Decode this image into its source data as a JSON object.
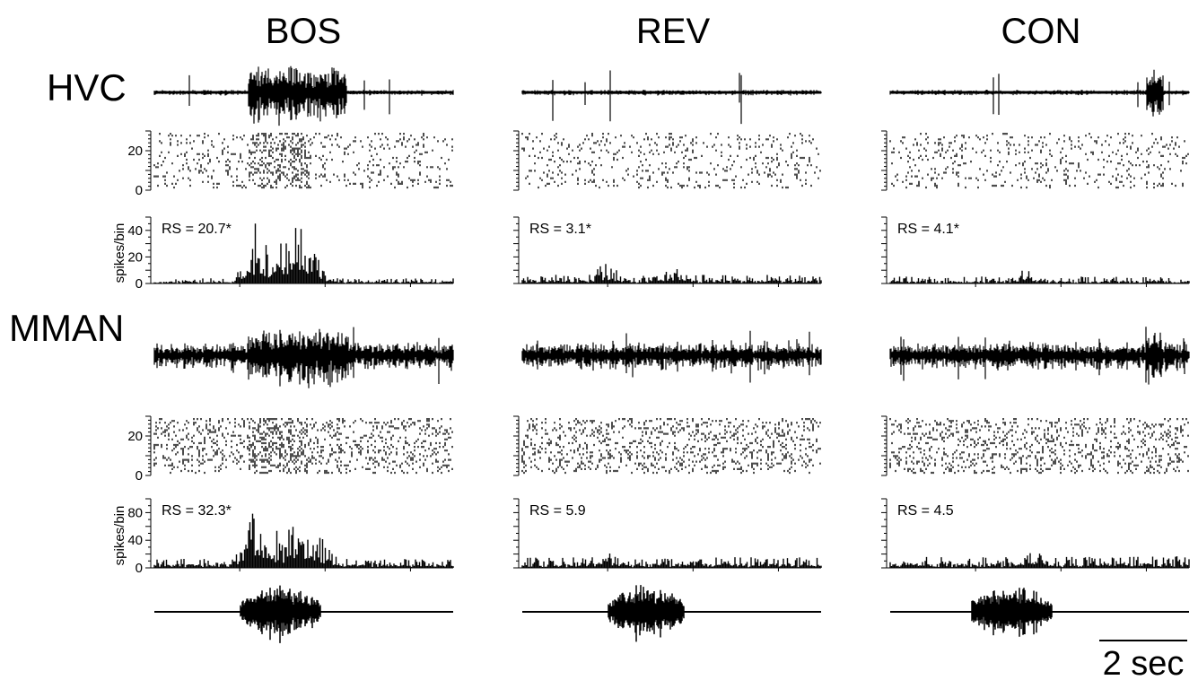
{
  "columns": [
    "BOS",
    "REV",
    "CON"
  ],
  "regions": [
    "HVC",
    "MMAN"
  ],
  "scale_bar_label": "2 sec",
  "chart_data": [
    {
      "type": "line",
      "panel": "HVC multiunit trace",
      "column": "BOS",
      "region": "HVC",
      "burst_windows_sec": [
        [
          2.2,
          4.5
        ]
      ]
    },
    {
      "type": "line",
      "panel": "HVC multiunit trace",
      "column": "REV",
      "region": "HVC",
      "burst_windows_sec": []
    },
    {
      "type": "line",
      "panel": "HVC multiunit trace",
      "column": "CON",
      "region": "HVC",
      "burst_windows_sec": [
        [
          6.0,
          6.4
        ]
      ]
    },
    {
      "type": "scatter",
      "panel": "HVC raster",
      "column": "BOS",
      "region": "HVC",
      "trials": 30,
      "yticks": [
        0,
        20
      ],
      "ylim": [
        0,
        30
      ]
    },
    {
      "type": "scatter",
      "panel": "HVC raster",
      "column": "REV",
      "region": "HVC",
      "trials": 30,
      "yticks": [
        0,
        20
      ],
      "ylim": [
        0,
        30
      ]
    },
    {
      "type": "scatter",
      "panel": "HVC raster",
      "column": "CON",
      "region": "HVC",
      "trials": 30,
      "yticks": [
        0,
        20
      ],
      "ylim": [
        0,
        30
      ]
    },
    {
      "type": "bar",
      "panel": "HVC PSTH",
      "column": "BOS",
      "region": "HVC",
      "annotation": "RS = 20.7*",
      "ylabel": "spikes/bin",
      "yticks": [
        0,
        20,
        40
      ],
      "ylim": [
        0,
        50
      ],
      "baseline": 3,
      "peaks": [
        [
          2.4,
          42
        ],
        [
          3.3,
          45
        ],
        [
          3.0,
          30
        ],
        [
          3.6,
          28
        ]
      ]
    },
    {
      "type": "bar",
      "panel": "HVC PSTH",
      "column": "REV",
      "region": "HVC",
      "annotation": "RS = 3.1*",
      "ylim": [
        0,
        50
      ],
      "baseline": 5,
      "peaks": [
        [
          2.0,
          16
        ],
        [
          3.5,
          13
        ]
      ]
    },
    {
      "type": "bar",
      "panel": "HVC PSTH",
      "column": "CON",
      "region": "HVC",
      "annotation": "RS = 4.1*",
      "ylim": [
        0,
        50
      ],
      "baseline": 4,
      "peaks": [
        [
          3.2,
          10
        ]
      ]
    },
    {
      "type": "line",
      "panel": "MMAN multiunit trace",
      "column": "BOS",
      "region": "MMAN",
      "burst_windows_sec": [
        [
          2.2,
          4.5
        ]
      ]
    },
    {
      "type": "line",
      "panel": "MMAN multiunit trace",
      "column": "REV",
      "region": "MMAN",
      "burst_windows_sec": []
    },
    {
      "type": "line",
      "panel": "MMAN multiunit trace",
      "column": "CON",
      "region": "MMAN",
      "burst_windows_sec": [
        [
          6.0,
          6.4
        ]
      ]
    },
    {
      "type": "scatter",
      "panel": "MMAN raster",
      "column": "BOS",
      "region": "MMAN",
      "trials": 30,
      "yticks": [
        0,
        20
      ],
      "ylim": [
        0,
        30
      ]
    },
    {
      "type": "scatter",
      "panel": "MMAN raster",
      "column": "REV",
      "region": "MMAN",
      "trials": 30,
      "yticks": [
        0,
        20
      ],
      "ylim": [
        0,
        30
      ]
    },
    {
      "type": "scatter",
      "panel": "MMAN raster",
      "column": "CON",
      "region": "MMAN",
      "trials": 30,
      "yticks": [
        0,
        20
      ],
      "ylim": [
        0,
        30
      ]
    },
    {
      "type": "bar",
      "panel": "MMAN PSTH",
      "column": "BOS",
      "region": "MMAN",
      "annotation": "RS = 32.3*",
      "ylabel": "spikes/bin",
      "yticks": [
        0,
        40,
        80
      ],
      "ylim": [
        0,
        100
      ],
      "baseline": 10,
      "peaks": [
        [
          2.3,
          75
        ],
        [
          3.4,
          88
        ],
        [
          2.8,
          55
        ],
        [
          3.9,
          45
        ]
      ]
    },
    {
      "type": "bar",
      "panel": "MMAN PSTH",
      "column": "REV",
      "region": "MMAN",
      "annotation": "RS = 5.9",
      "ylim": [
        0,
        100
      ],
      "baseline": 12,
      "peaks": [
        [
          2.0,
          25
        ]
      ]
    },
    {
      "type": "bar",
      "panel": "MMAN PSTH",
      "column": "CON",
      "region": "MMAN",
      "annotation": "RS = 4.5",
      "ylim": [
        0,
        100
      ],
      "baseline": 13,
      "peaks": [
        [
          3.4,
          22
        ]
      ]
    },
    {
      "type": "line",
      "panel": "song waveform",
      "column": "BOS",
      "song_window_sec": [
        2.0,
        3.9
      ]
    },
    {
      "type": "line",
      "panel": "song waveform",
      "column": "REV",
      "song_window_sec": [
        2.0,
        3.8
      ]
    },
    {
      "type": "line",
      "panel": "song waveform",
      "column": "CON",
      "song_window_sec": [
        1.9,
        3.8
      ]
    }
  ]
}
